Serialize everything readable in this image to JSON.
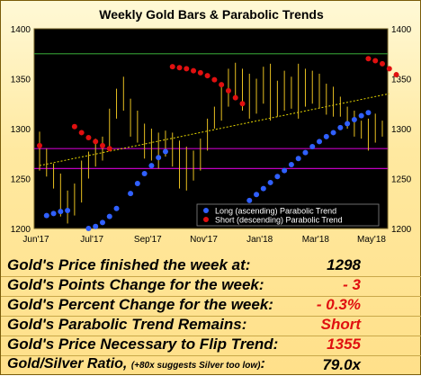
{
  "chart_data": {
    "type": "ohlc",
    "title": "Weekly Gold Bars & Parabolic Trends",
    "y_ticks": [
      1200,
      1250,
      1300,
      1350,
      1400
    ],
    "ylim": [
      1200,
      1400
    ],
    "x_ticks": [
      "Jun'17",
      "Jul'17",
      "Sep'17",
      "Nov'17",
      "Jan'18",
      "Mar'18",
      "May'18"
    ],
    "grid": false,
    "legend_position": "bottom-right",
    "legend": [
      "Long (ascending) Parabolic Trend",
      "Short (descending) Parabolic Trend"
    ],
    "horizontal_lines": [
      {
        "value": 1375,
        "color": "#2e8b2e"
      },
      {
        "value": 1280,
        "color": "#c000c0"
      },
      {
        "value": 1260,
        "color": "#c000c0"
      }
    ],
    "trendline": {
      "from": [
        0,
        1263
      ],
      "to": [
        50,
        1335
      ],
      "color": "#e8d800"
    },
    "bars": [
      {
        "high": 1297,
        "low": 1258
      },
      {
        "high": 1280,
        "low": 1252
      },
      {
        "high": 1265,
        "low": 1240
      },
      {
        "high": 1255,
        "low": 1212
      },
      {
        "high": 1238,
        "low": 1205
      },
      {
        "high": 1245,
        "low": 1213
      },
      {
        "high": 1268,
        "low": 1226
      },
      {
        "high": 1277,
        "low": 1250
      },
      {
        "high": 1290,
        "low": 1262
      },
      {
        "high": 1292,
        "low": 1268
      },
      {
        "high": 1320,
        "low": 1278
      },
      {
        "high": 1340,
        "low": 1310
      },
      {
        "high": 1352,
        "low": 1318
      },
      {
        "high": 1330,
        "low": 1292
      },
      {
        "high": 1318,
        "low": 1286
      },
      {
        "high": 1305,
        "low": 1270
      },
      {
        "high": 1300,
        "low": 1268
      },
      {
        "high": 1296,
        "low": 1260
      },
      {
        "high": 1298,
        "low": 1272
      },
      {
        "high": 1296,
        "low": 1262
      },
      {
        "high": 1288,
        "low": 1240
      },
      {
        "high": 1282,
        "low": 1238
      },
      {
        "high": 1278,
        "low": 1248
      },
      {
        "high": 1290,
        "low": 1258
      },
      {
        "high": 1310,
        "low": 1278
      },
      {
        "high": 1322,
        "low": 1300
      },
      {
        "high": 1345,
        "low": 1308
      },
      {
        "high": 1360,
        "low": 1322
      },
      {
        "high": 1366,
        "low": 1330
      },
      {
        "high": 1360,
        "low": 1318
      },
      {
        "high": 1355,
        "low": 1310
      },
      {
        "high": 1350,
        "low": 1315
      },
      {
        "high": 1362,
        "low": 1325
      },
      {
        "high": 1365,
        "low": 1308
      },
      {
        "high": 1348,
        "low": 1312
      },
      {
        "high": 1358,
        "low": 1318
      },
      {
        "high": 1352,
        "low": 1320
      },
      {
        "high": 1365,
        "low": 1310
      },
      {
        "high": 1360,
        "low": 1322
      },
      {
        "high": 1358,
        "low": 1325
      },
      {
        "high": 1355,
        "low": 1320
      },
      {
        "high": 1345,
        "low": 1314
      },
      {
        "high": 1342,
        "low": 1312
      },
      {
        "high": 1332,
        "low": 1312
      },
      {
        "high": 1322,
        "low": 1300
      },
      {
        "high": 1318,
        "low": 1292
      },
      {
        "high": 1308,
        "low": 1290
      },
      {
        "high": 1310,
        "low": 1278
      },
      {
        "high": 1315,
        "low": 1286
      },
      {
        "high": 1308,
        "low": 1292
      }
    ],
    "series": [
      {
        "name": "Long (ascending) Parabolic Trend",
        "color": "#3060ff",
        "points": [
          [
            1,
            1213
          ],
          [
            2,
            1215
          ],
          [
            3,
            1217
          ],
          [
            4,
            1218
          ],
          [
            7,
            1200
          ],
          [
            8,
            1202
          ],
          [
            9,
            1206
          ],
          [
            10,
            1212
          ],
          [
            11,
            1220
          ],
          [
            13,
            1235
          ],
          [
            14,
            1245
          ],
          [
            15,
            1255
          ],
          [
            16,
            1263
          ],
          [
            17,
            1271
          ],
          [
            18,
            1277
          ],
          [
            29,
            1222
          ],
          [
            30,
            1228
          ],
          [
            31,
            1234
          ],
          [
            32,
            1240
          ],
          [
            33,
            1246
          ],
          [
            34,
            1252
          ],
          [
            35,
            1258
          ],
          [
            36,
            1264
          ],
          [
            37,
            1270
          ],
          [
            38,
            1276
          ],
          [
            39,
            1282
          ],
          [
            40,
            1287
          ],
          [
            41,
            1292
          ],
          [
            42,
            1296
          ],
          [
            43,
            1301
          ],
          [
            44,
            1305
          ],
          [
            45,
            1309
          ],
          [
            46,
            1313
          ],
          [
            47,
            1316
          ]
        ]
      },
      {
        "name": "Short (descending) Parabolic Trend",
        "color": "#e01010",
        "points": [
          [
            0,
            1283
          ],
          [
            5,
            1302
          ],
          [
            6,
            1296
          ],
          [
            7,
            1291
          ],
          [
            8,
            1287
          ],
          [
            9,
            1283
          ],
          [
            10,
            1280
          ],
          [
            19,
            1362
          ],
          [
            20,
            1361
          ],
          [
            21,
            1360
          ],
          [
            22,
            1358
          ],
          [
            23,
            1356
          ],
          [
            24,
            1353
          ],
          [
            25,
            1349
          ],
          [
            26,
            1344
          ],
          [
            27,
            1338
          ],
          [
            28,
            1331
          ],
          [
            29,
            1325
          ],
          [
            47,
            1370
          ],
          [
            48,
            1368
          ],
          [
            49,
            1365
          ],
          [
            50,
            1360
          ],
          [
            51,
            1354
          ]
        ]
      }
    ]
  },
  "stats": [
    {
      "label": "Gold's Price finished the week at:",
      "value": "1298",
      "value_color": "#000000"
    },
    {
      "label": "Gold's Points Change for the week:",
      "value": "- 3",
      "value_color": "#e01010"
    },
    {
      "label": "Gold's Percent Change for the week:",
      "value": "- 0.3%",
      "value_color": "#e01010"
    },
    {
      "label": "Gold's Parabolic Trend Remains:",
      "value": "Short",
      "value_color": "#e01010"
    },
    {
      "label": "Gold's Price Necessary to Flip Trend:",
      "value": "1355",
      "value_color": "#e01010"
    }
  ],
  "ratio": {
    "label": "Gold/Silver Ratio,",
    "note": "(+80x suggests Silver too low)",
    "colon": ":",
    "value": "79.0x",
    "value_color": "#000000"
  }
}
